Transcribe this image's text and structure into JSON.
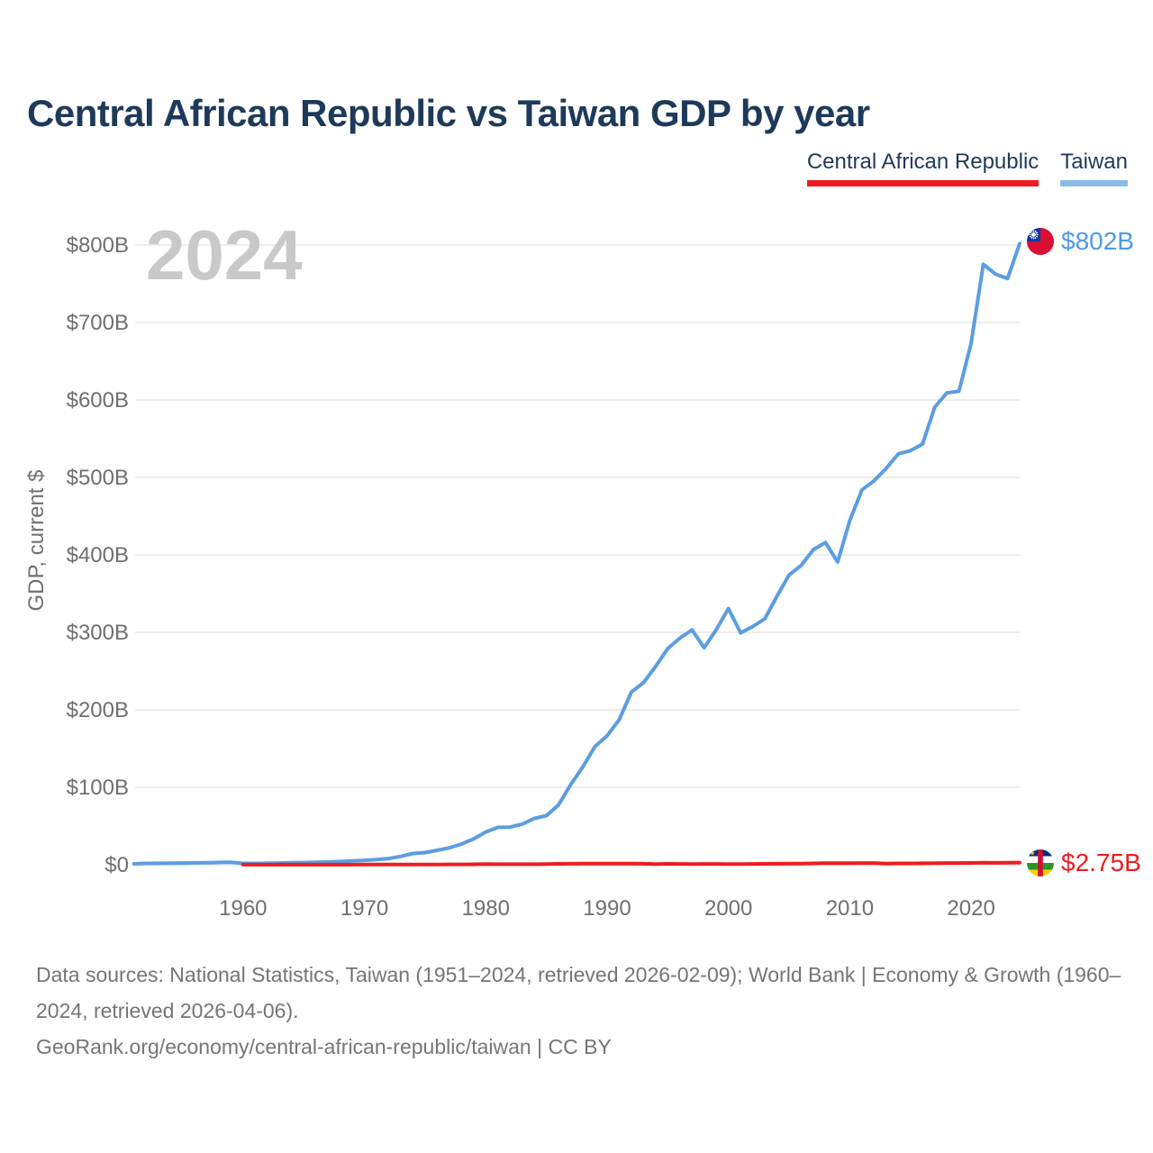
{
  "page": {
    "title": "Central African Republic vs Taiwan GDP by year",
    "watermark_year": "2024",
    "footer_line1": "Data sources: National Statistics, Taiwan (1951–2024, retrieved 2026-02-09); World Bank | Economy & Growth (1960–2024, retrieved 2026-04-06).",
    "footer_line2": "GeoRank.org/economy/central-african-republic/taiwan | CC BY"
  },
  "legend": {
    "items": [
      {
        "label": "Central African Republic",
        "color": "#ee1c1e"
      },
      {
        "label": "Taiwan",
        "color": "#8abbe9"
      }
    ]
  },
  "chart_data": {
    "type": "line",
    "title": "Central African Republic vs Taiwan GDP by year",
    "xlabel": "",
    "ylabel": "GDP, current $",
    "unit": "billions of current US$",
    "xlim": [
      1951,
      2024
    ],
    "ylim": [
      0,
      800
    ],
    "grid": "horizontal",
    "legend_position": "top-right",
    "current_year": 2024,
    "x_ticks": [
      1960,
      1970,
      1980,
      1990,
      2000,
      2010,
      2020
    ],
    "y_ticks": [
      {
        "value": 0,
        "label": "$0"
      },
      {
        "value": 100,
        "label": "$100B"
      },
      {
        "value": 200,
        "label": "$200B"
      },
      {
        "value": 300,
        "label": "$300B"
      },
      {
        "value": 400,
        "label": "$400B"
      },
      {
        "value": 500,
        "label": "$500B"
      },
      {
        "value": 600,
        "label": "$600B"
      },
      {
        "value": 700,
        "label": "$700B"
      },
      {
        "value": 800,
        "label": "$800B"
      }
    ],
    "series": [
      {
        "name": "Central African Republic",
        "color": "#ee1c1e",
        "end_label": "$2.75B",
        "end_value_billion": 2.75,
        "years": [
          1960,
          1961,
          1962,
          1963,
          1964,
          1965,
          1966,
          1967,
          1968,
          1969,
          1970,
          1971,
          1972,
          1973,
          1974,
          1975,
          1976,
          1977,
          1978,
          1979,
          1980,
          1981,
          1982,
          1983,
          1984,
          1985,
          1986,
          1987,
          1988,
          1989,
          1990,
          1991,
          1992,
          1993,
          1994,
          1995,
          1996,
          1997,
          1998,
          1999,
          2000,
          2001,
          2002,
          2003,
          2004,
          2005,
          2006,
          2007,
          2008,
          2009,
          2010,
          2011,
          2012,
          2013,
          2014,
          2015,
          2016,
          2017,
          2018,
          2019,
          2020,
          2021,
          2022,
          2023,
          2024
        ],
        "values": [
          0.11,
          0.12,
          0.13,
          0.13,
          0.14,
          0.14,
          0.15,
          0.16,
          0.16,
          0.17,
          0.18,
          0.19,
          0.2,
          0.23,
          0.27,
          0.34,
          0.36,
          0.43,
          0.52,
          0.62,
          0.8,
          0.74,
          0.73,
          0.71,
          0.72,
          0.93,
          1.18,
          1.33,
          1.37,
          1.35,
          1.48,
          1.4,
          1.47,
          1.32,
          0.85,
          1.12,
          1.01,
          0.95,
          1.04,
          1.04,
          0.91,
          0.96,
          1.05,
          1.14,
          1.27,
          1.35,
          1.48,
          1.7,
          1.99,
          1.98,
          1.99,
          2.2,
          2.18,
          1.52,
          1.7,
          1.7,
          1.83,
          2.07,
          2.22,
          2.22,
          2.33,
          2.52,
          2.4,
          2.56,
          2.75
        ]
      },
      {
        "name": "Taiwan",
        "color": "#5b9de2",
        "end_label": "$802B",
        "end_value_billion": 802,
        "years": [
          1951,
          1952,
          1953,
          1954,
          1955,
          1956,
          1957,
          1958,
          1959,
          1960,
          1961,
          1962,
          1963,
          1964,
          1965,
          1966,
          1967,
          1968,
          1969,
          1970,
          1971,
          1972,
          1973,
          1974,
          1975,
          1976,
          1977,
          1978,
          1979,
          1980,
          1981,
          1982,
          1983,
          1984,
          1985,
          1986,
          1987,
          1988,
          1989,
          1990,
          1991,
          1992,
          1993,
          1994,
          1995,
          1996,
          1997,
          1998,
          1999,
          2000,
          2001,
          2002,
          2003,
          2004,
          2005,
          2006,
          2007,
          2008,
          2009,
          2010,
          2011,
          2012,
          2013,
          2014,
          2015,
          2016,
          2017,
          2018,
          2019,
          2020,
          2021,
          2022,
          2023,
          2024
        ],
        "values": [
          1.2,
          1.7,
          1.9,
          2.0,
          2.2,
          2.5,
          2.7,
          2.9,
          3.2,
          1.7,
          1.8,
          1.9,
          2.2,
          2.6,
          2.8,
          3.2,
          3.6,
          4.2,
          4.9,
          5.7,
          6.6,
          8.0,
          10.8,
          14.5,
          15.7,
          18.6,
          21.9,
          26.8,
          33.2,
          42.3,
          48.2,
          48.6,
          52.4,
          59.8,
          63.4,
          77.3,
          103.6,
          126.2,
          152.7,
          166.6,
          187.1,
          222.9,
          235.1,
          256.2,
          279.1,
          292.6,
          303.3,
          280.1,
          303.6,
          330.7,
          299.3,
          307.4,
          317.4,
          346.9,
          374.1,
          386.5,
          406.9,
          415.9,
          390.8,
          444.3,
          484.0,
          495.6,
          511.6,
          530.5,
          534.5,
          543.1,
          590.7,
          609.2,
          611.3,
          673.2,
          775.1,
          762.6,
          756.6,
          802.0
        ]
      }
    ]
  }
}
